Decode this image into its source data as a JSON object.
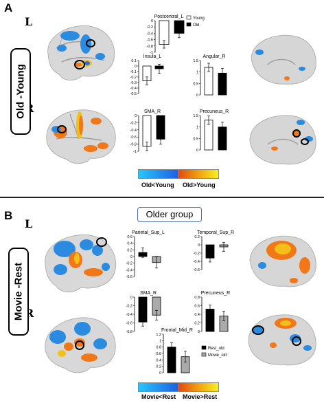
{
  "panelA": {
    "letter": "A",
    "side_label": "Old -Young",
    "hemi_top": "L",
    "hemi_bottom": "R",
    "colorbar": {
      "left_label": "Old<Young",
      "right_label": "Old>Young"
    }
  },
  "panelB": {
    "letter": "B",
    "side_label": "Movie -Rest",
    "group_title": "Older group",
    "hemi_top": "L",
    "hemi_bottom": "R",
    "colorbar": {
      "left_label": "Movie<Rest",
      "right_label": "Movie>Rest"
    }
  },
  "colors": {
    "white_bar": "#ffffff",
    "black_bar": "#000000",
    "gray_bar": "#aaaaaa",
    "cold": "#1e8fe6",
    "hot": "#f07818",
    "yellow": "#f4e218"
  },
  "chart_data": [
    {
      "type": "bar",
      "title": "Postcentral_L",
      "ylim": [
        -1,
        0
      ],
      "ticks": [
        0,
        -0.2,
        -0.4,
        -0.6,
        -0.8,
        -1
      ],
      "series": [
        {
          "name": "Young",
          "values": [
            -0.75
          ]
        },
        {
          "name": "Old",
          "values": [
            -0.4
          ]
        }
      ],
      "legend": [
        "Young",
        "Old"
      ]
    },
    {
      "type": "bar",
      "title": "Insula_L",
      "ylim": [
        -0.5,
        0.1
      ],
      "ticks": [
        0.1,
        0,
        -0.1,
        -0.2,
        -0.3,
        -0.4,
        -0.5
      ],
      "series": [
        {
          "values": [
            -0.27
          ]
        },
        {
          "values": [
            -0.05
          ]
        }
      ]
    },
    {
      "type": "bar",
      "title": "Angular_R",
      "ylim": [
        0,
        1.5
      ],
      "ticks": [
        1.5,
        1,
        0.5,
        0
      ],
      "series": [
        {
          "values": [
            1.2
          ]
        },
        {
          "values": [
            0.95
          ]
        }
      ]
    },
    {
      "type": "bar",
      "title": "SMA_R",
      "ylim": [
        -1,
        0
      ],
      "ticks": [
        0,
        -0.2,
        -0.4,
        -0.6,
        -0.8,
        -1
      ],
      "series": [
        {
          "values": [
            -0.86
          ]
        },
        {
          "values": [
            -0.66
          ]
        }
      ]
    },
    {
      "type": "bar",
      "title": "Precuneus_R",
      "ylim": [
        0,
        1.5
      ],
      "ticks": [
        1.5,
        1,
        0.5,
        0
      ],
      "series": [
        {
          "values": [
            1.3
          ]
        },
        {
          "values": [
            1.0
          ]
        }
      ]
    },
    {
      "type": "bar",
      "title": "Parietal_Sup_L",
      "ylim": [
        -0.6,
        0.6
      ],
      "ticks": [
        0.6,
        0.4,
        0.2,
        0,
        -0.2,
        -0.4,
        -0.6
      ],
      "series": [
        {
          "values": [
            0.12
          ]
        },
        {
          "values": [
            -0.18
          ]
        }
      ]
    },
    {
      "type": "bar",
      "title": "Temporal_Sup_R",
      "ylim": [
        -0.6,
        0.2
      ],
      "ticks": [
        0.2,
        0,
        -0.2,
        -0.4,
        -0.6
      ],
      "series": [
        {
          "values": [
            -0.32
          ]
        },
        {
          "values": [
            -0.05
          ]
        }
      ]
    },
    {
      "type": "bar",
      "title": "SMA_R",
      "ylim": [
        -0.8,
        0
      ],
      "ticks": [
        0,
        -0.2,
        -0.4,
        -0.6,
        -0.8
      ],
      "series": [
        {
          "values": [
            -0.58
          ]
        },
        {
          "values": [
            -0.42
          ]
        }
      ]
    },
    {
      "type": "bar",
      "title": "Precuneus_R",
      "ylim": [
        0,
        0.8
      ],
      "ticks": [
        0.8,
        0.6,
        0.4,
        0.2,
        0
      ],
      "series": [
        {
          "values": [
            0.52
          ]
        },
        {
          "values": [
            0.36
          ]
        }
      ]
    },
    {
      "type": "bar",
      "title": "Frontal_Mid_R",
      "ylim": [
        0,
        1.2
      ],
      "ticks": [
        1.2,
        1,
        0.8,
        0.6,
        0.4,
        0.2,
        0
      ],
      "series": [
        {
          "name": "Rest_old",
          "values": [
            0.8
          ]
        },
        {
          "name": "Movie_old",
          "values": [
            0.5
          ]
        }
      ],
      "legend": [
        "Rest_old",
        "Movie_old"
      ]
    }
  ]
}
